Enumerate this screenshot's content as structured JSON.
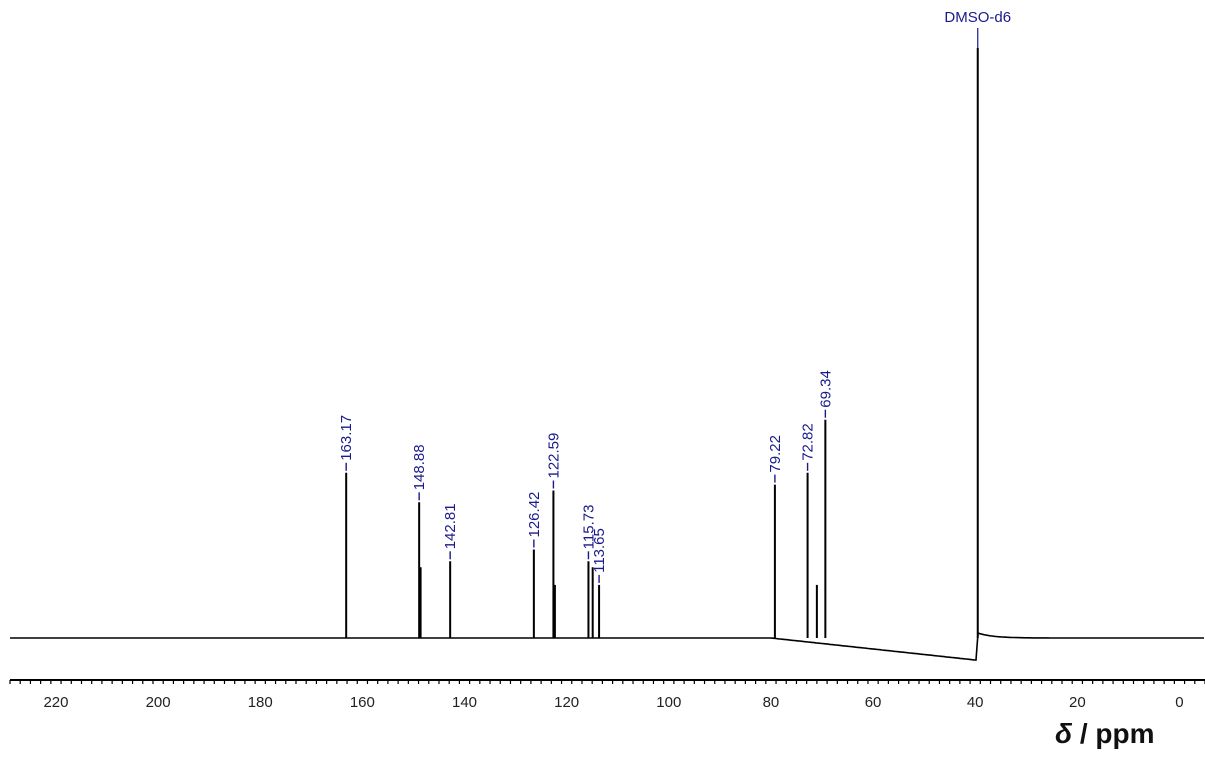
{
  "chart_data": {
    "type": "line",
    "title": "",
    "xlabel": {
      "symbol": "δ",
      "unit": "/ ppm"
    },
    "ylabel": "",
    "xlim": [
      229,
      -5
    ],
    "x_reversed": true,
    "grid": false,
    "x_ticks": [
      220,
      200,
      180,
      160,
      140,
      120,
      100,
      80,
      60,
      40,
      20,
      0
    ],
    "x_tick_labels": [
      "220",
      "200",
      "180",
      "160",
      "140",
      "120",
      "100",
      "80",
      "60",
      "40",
      "20",
      "0"
    ],
    "y_range": [
      0,
      1.0
    ],
    "peaks": [
      {
        "ppm": 163.17,
        "height": 0.28,
        "label": "163.17"
      },
      {
        "ppm": 148.88,
        "height": 0.23,
        "label": "148.88"
      },
      {
        "ppm": 148.6,
        "height": 0.12,
        "label": ""
      },
      {
        "ppm": 142.81,
        "height": 0.13,
        "label": "142.81"
      },
      {
        "ppm": 126.42,
        "height": 0.15,
        "label": "126.42"
      },
      {
        "ppm": 122.59,
        "height": 0.25,
        "label": "122.59"
      },
      {
        "ppm": 122.3,
        "height": 0.09,
        "label": ""
      },
      {
        "ppm": 115.73,
        "height": 0.13,
        "label": "115.73"
      },
      {
        "ppm": 114.9,
        "height": 0.12,
        "label": ""
      },
      {
        "ppm": 113.65,
        "height": 0.09,
        "label": "113.65"
      },
      {
        "ppm": 79.22,
        "height": 0.26,
        "label": "79.22"
      },
      {
        "ppm": 72.82,
        "height": 0.28,
        "label": "72.82"
      },
      {
        "ppm": 71.0,
        "height": 0.09,
        "label": ""
      },
      {
        "ppm": 69.34,
        "height": 0.37,
        "label": "69.34"
      },
      {
        "ppm": 39.5,
        "height": 1.0,
        "label": "DMSO-d6"
      }
    ],
    "label_color": "#1a1a8c",
    "line_color": "#000000"
  }
}
